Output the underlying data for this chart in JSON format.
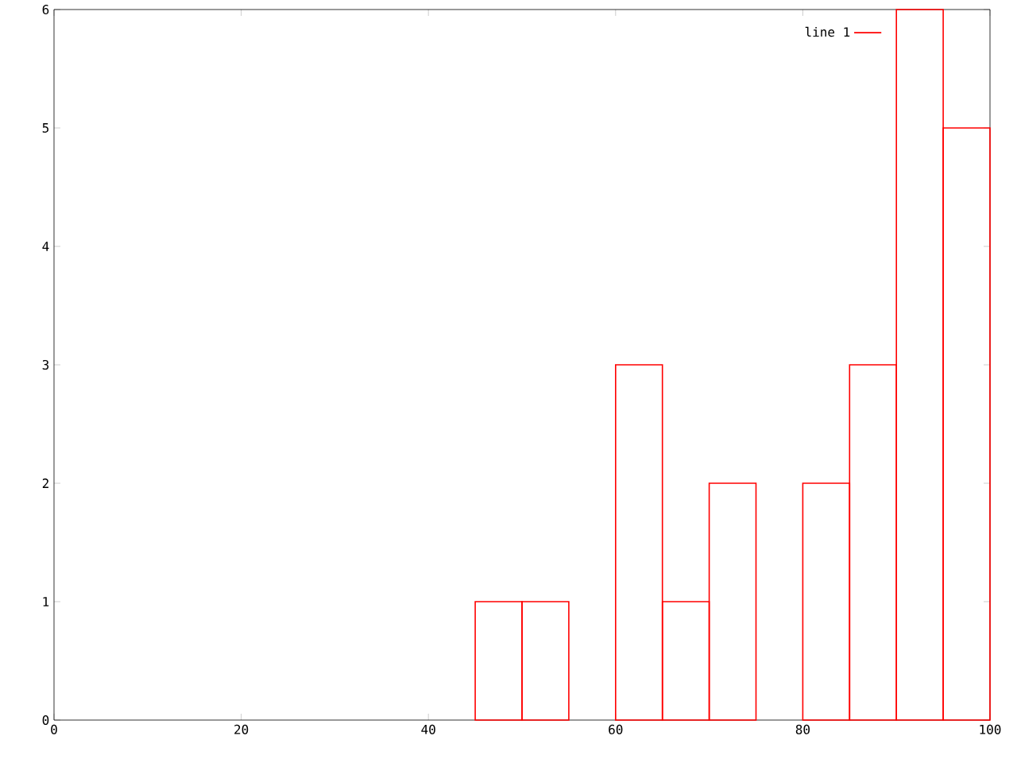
{
  "chart_data": {
    "type": "histogram",
    "bins": [
      45,
      50,
      55,
      60,
      65,
      70,
      75,
      80,
      85,
      90,
      95,
      100
    ],
    "series": [
      {
        "name": "line 1",
        "color": "#ff0000",
        "values": [
          1,
          1,
          null,
          3,
          1,
          2,
          null,
          2,
          3,
          6,
          5
        ]
      }
    ],
    "xlim": [
      0,
      100
    ],
    "ylim": [
      0,
      6
    ],
    "xticks": [
      0,
      20,
      40,
      60,
      80,
      100
    ],
    "yticks": [
      0,
      1,
      2,
      3,
      4,
      5,
      6
    ],
    "legend": "top right"
  }
}
